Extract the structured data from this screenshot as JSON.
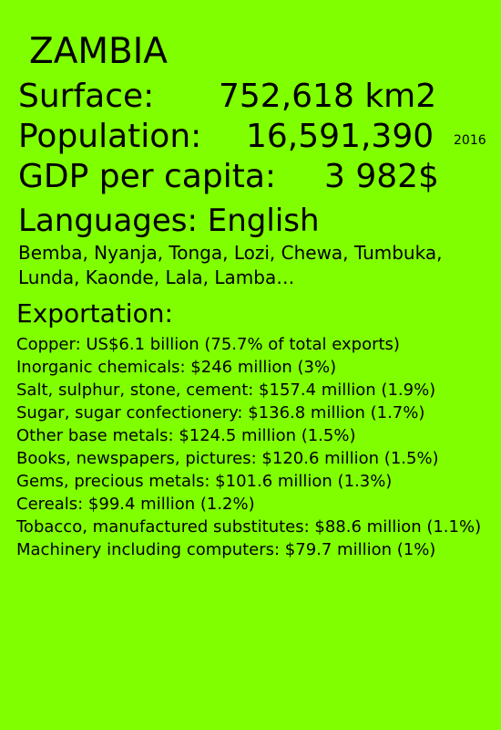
{
  "country": "ZAMBIA",
  "stats": {
    "surface_label": "Surface:",
    "surface_value": "752,618 km2",
    "population_label": "Population:",
    "population_value": "16,591,390",
    "population_year": "2016",
    "gdp_label": "GDP per capita:",
    "gdp_value": "3 982$"
  },
  "languages": {
    "heading": "Languages: English",
    "others": "Bemba, Nyanja, Tonga, Lozi, Chewa, Tumbuka, Lunda, Kaonde, Lala, Lamba…"
  },
  "exportation": {
    "title": "Exportation:",
    "items": [
      "Copper: US$6.1 billion (75.7% of total exports)",
      "Inorganic chemicals: $246 million (3%)",
      "Salt, sulphur, stone, cement: $157.4 million (1.9%)",
      "Sugar, sugar confectionery: $136.8 million (1.7%)",
      "Other base metals: $124.5 million (1.5%)",
      "Books, newspapers, pictures: $120.6 million (1.5%)",
      "Gems, precious metals: $101.6 million (1.3%)",
      "Cereals: $99.4 million (1.2%)",
      "Tobacco, manufactured substitutes: $88.6 million (1.1%)",
      "Machinery including computers: $79.7 million (1%)"
    ]
  },
  "colors": {
    "background": "#80ff00",
    "text": "#000000"
  }
}
